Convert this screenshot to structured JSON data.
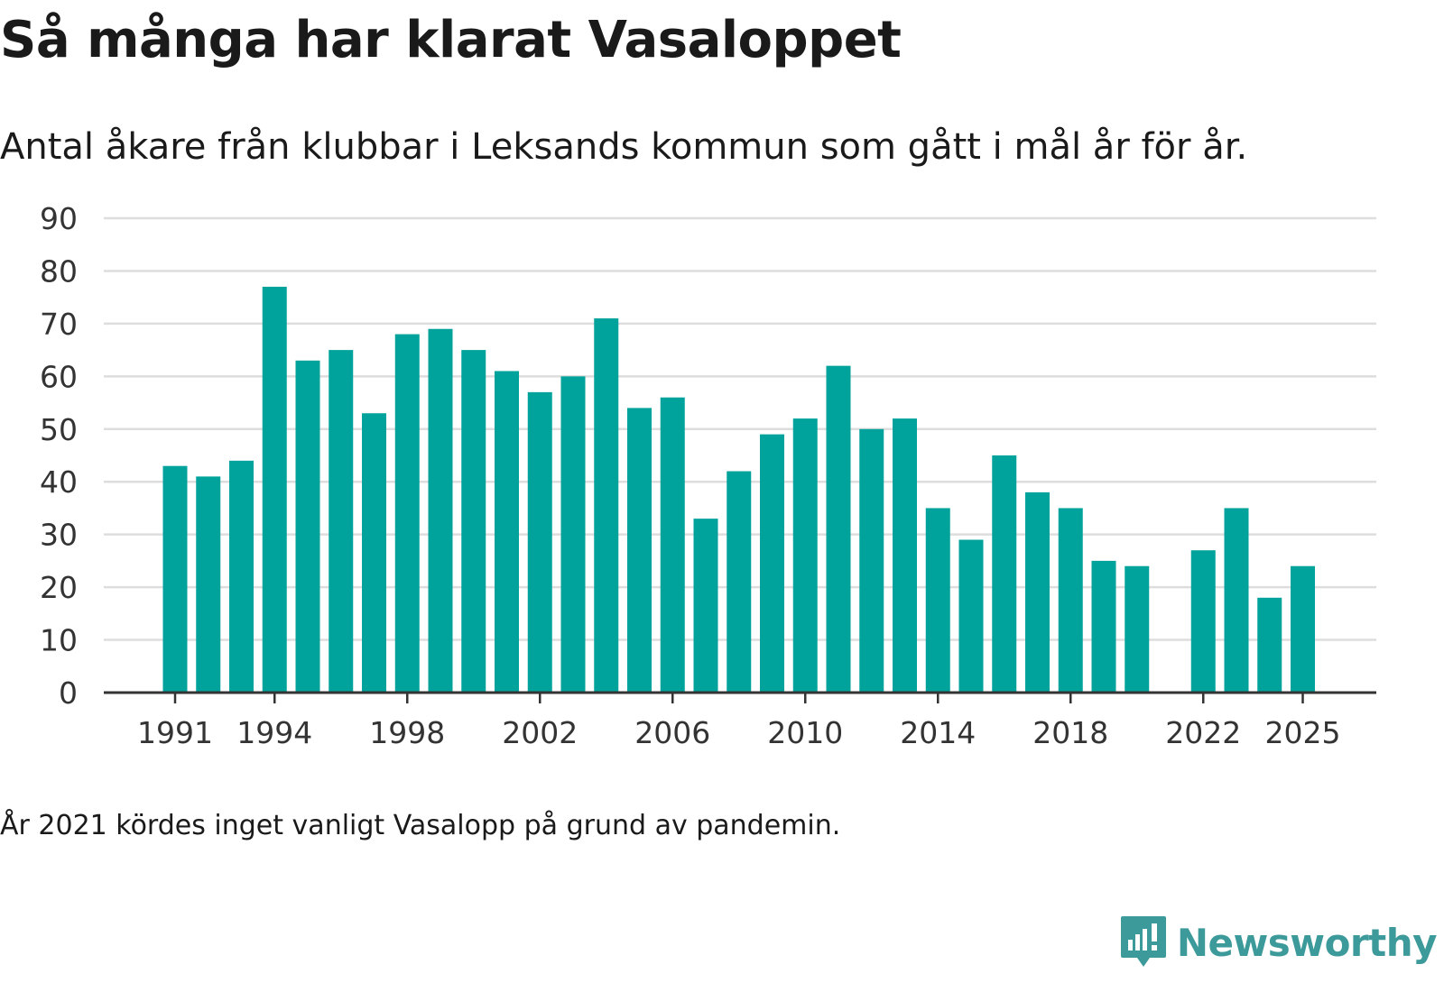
{
  "header": {
    "title": "Så många har klarat Vasaloppet",
    "subtitle": "Antal åkare från klubbar i Leksands kommun som gått i mål år för år."
  },
  "footer": {
    "note": "År 2021 kördes inget vanligt Vasalopp på grund av pandemin.",
    "brand": "Newsworthy"
  },
  "colors": {
    "bar": "#00a39b",
    "grid": "#dddddd",
    "axis": "#333333",
    "brand": "#3d9a9a"
  },
  "chart_data": {
    "type": "bar",
    "title": "Så många har klarat Vasaloppet",
    "xlabel": "",
    "ylabel": "",
    "ylim": [
      0,
      90
    ],
    "yticks": [
      0,
      10,
      20,
      30,
      40,
      50,
      60,
      70,
      80,
      90
    ],
    "xticks": [
      "1991",
      "1994",
      "1998",
      "2002",
      "2006",
      "2010",
      "2014",
      "2018",
      "2022",
      "2025"
    ],
    "grid": true,
    "categories": [
      "1991",
      "1992",
      "1993",
      "1994",
      "1995",
      "1996",
      "1997",
      "1998",
      "1999",
      "2000",
      "2001",
      "2002",
      "2003",
      "2004",
      "2005",
      "2006",
      "2007",
      "2008",
      "2009",
      "2010",
      "2011",
      "2012",
      "2013",
      "2014",
      "2015",
      "2016",
      "2017",
      "2018",
      "2019",
      "2020",
      "2021",
      "2022",
      "2023",
      "2024",
      "2025"
    ],
    "values": [
      43,
      41,
      44,
      77,
      63,
      65,
      53,
      68,
      69,
      65,
      61,
      57,
      60,
      71,
      54,
      56,
      33,
      42,
      49,
      52,
      62,
      50,
      52,
      35,
      29,
      45,
      38,
      35,
      25,
      24,
      null,
      27,
      35,
      18,
      24
    ]
  }
}
